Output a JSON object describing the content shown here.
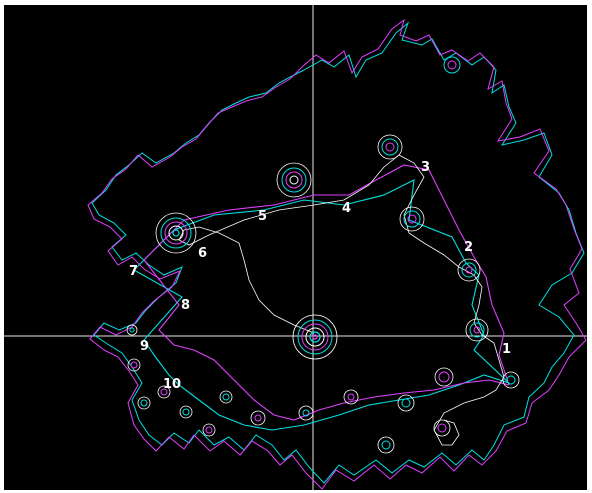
{
  "labels": [
    "1",
    "2",
    "3",
    "4",
    "5",
    "6",
    "7",
    "8",
    "9",
    "10"
  ],
  "colors": {
    "background": "#000000",
    "axes": "#ffffff",
    "pathA": "#00e0e0",
    "pathB": "#e040ff",
    "highlight": "#ffffff"
  },
  "vortex_count": 22
}
